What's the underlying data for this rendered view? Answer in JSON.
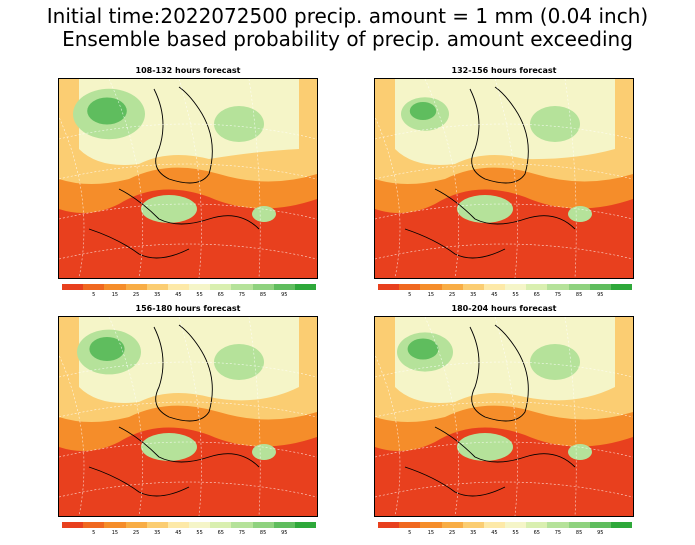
{
  "title_line1": "Initial time:2022072500 precip. amount = 1 mm (0.04 inch)",
  "title_line2": "Ensemble based probability of precip. amount exceeding",
  "panels": [
    {
      "title": "108-132 hours forecast"
    },
    {
      "title": "132-156 hours forecast"
    },
    {
      "title": "156-180 hours forecast"
    },
    {
      "title": "180-204 hours forecast"
    }
  ],
  "colorbar": {
    "colors": [
      "#e8401e",
      "#f06820",
      "#f58d2a",
      "#f8ad45",
      "#fbcd72",
      "#fde9a8",
      "#f5f5c8",
      "#d9efb0",
      "#b5e29a",
      "#8fd27f",
      "#5fbd5e",
      "#2ea83a"
    ],
    "labels": [
      "5",
      "15",
      "25",
      "35",
      "45",
      "55",
      "65",
      "75",
      "85",
      "95"
    ]
  },
  "colors": {
    "ocean_red": "#e8401e",
    "orange": "#f58d2a",
    "light_orange": "#fbcd72",
    "cream": "#f5f5c8",
    "light_green": "#b5e29a",
    "green": "#5fbd5e"
  }
}
